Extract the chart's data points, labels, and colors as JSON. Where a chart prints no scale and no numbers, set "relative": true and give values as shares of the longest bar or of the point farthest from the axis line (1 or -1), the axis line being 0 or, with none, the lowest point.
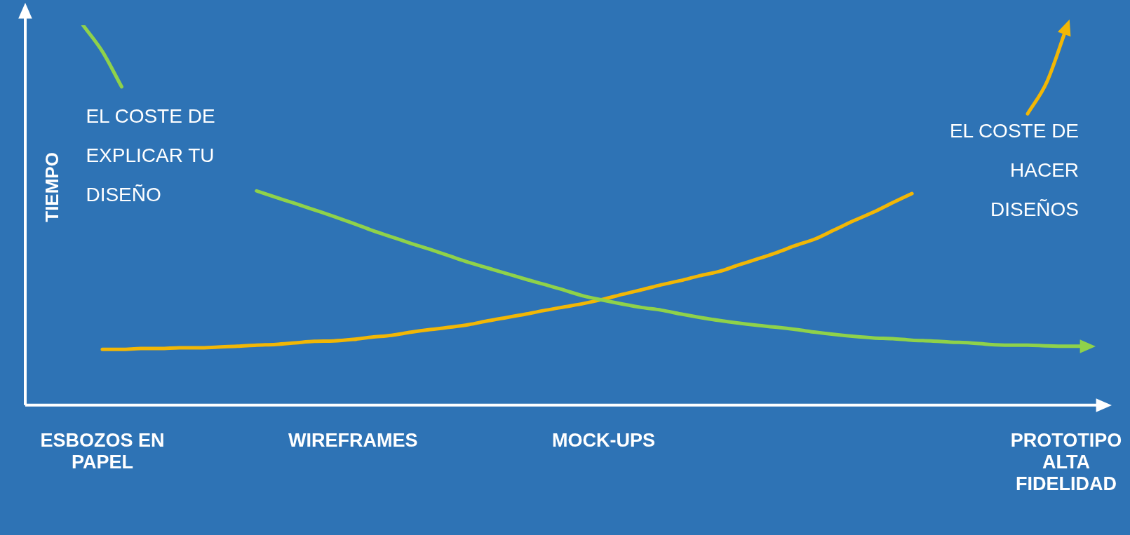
{
  "chart_data": {
    "type": "line",
    "relative": true,
    "ylabel": "TIEMPO",
    "legend": false,
    "grid": false,
    "marker": "none",
    "line_style": "solid",
    "categories": [
      null,
      null,
      null,
      null,
      "ESBOZOS EN\nPAPEL",
      null,
      null,
      null,
      null,
      null,
      null,
      null,
      null,
      null,
      null,
      null,
      null,
      "WIREFRAMES",
      null,
      null,
      null,
      null,
      null,
      null,
      null,
      null,
      null,
      null,
      null,
      null,
      "MOCK-UPS",
      null,
      null,
      null,
      null,
      null,
      null,
      null,
      null,
      null,
      null,
      null,
      null,
      null,
      null,
      null,
      null,
      null,
      null,
      null,
      null,
      null,
      null,
      null,
      "PROTOTIPO\nALTA\nFIDELIDAD",
      null,
      null
    ],
    "series": [
      {
        "name": "EL COSTE DE\nEXPLICAR TU\nDISEÑO",
        "color": "#8fd24a",
        "values": [
          null,
          null,
          null,
          1.0,
          0.931,
          0.838,
          null,
          null,
          null,
          null,
          null,
          null,
          0.564,
          0.547,
          0.531,
          0.514,
          0.497,
          0.479,
          0.46,
          0.443,
          0.426,
          0.41,
          0.393,
          0.376,
          0.361,
          0.346,
          0.331,
          0.317,
          0.302,
          0.287,
          0.276,
          0.266,
          0.257,
          0.25,
          0.24,
          0.231,
          0.223,
          0.216,
          0.21,
          0.205,
          0.199,
          0.192,
          0.186,
          0.181,
          0.177,
          0.175,
          0.171,
          0.169,
          0.166,
          0.164,
          0.16,
          0.158,
          0.158,
          0.156,
          0.155,
          0.155,
          null
        ]
      },
      {
        "name": "EL COSTE DE\nHACER\nDISEÑOS",
        "color": "#f2b705",
        "values": [
          null,
          null,
          null,
          null,
          0.147,
          0.147,
          0.149,
          0.149,
          0.151,
          0.151,
          0.153,
          0.155,
          0.158,
          0.16,
          0.164,
          0.168,
          0.169,
          0.173,
          0.179,
          0.184,
          0.192,
          0.199,
          0.205,
          0.212,
          0.222,
          0.231,
          0.24,
          0.25,
          0.259,
          0.268,
          0.279,
          0.292,
          0.304,
          0.317,
          0.328,
          0.341,
          0.352,
          0.369,
          0.385,
          0.402,
          0.421,
          0.438,
          0.462,
          0.486,
          0.508,
          0.533,
          0.557,
          null,
          null,
          null,
          null,
          null,
          0.767,
          0.851,
          0.991,
          null,
          null
        ]
      }
    ]
  }
}
